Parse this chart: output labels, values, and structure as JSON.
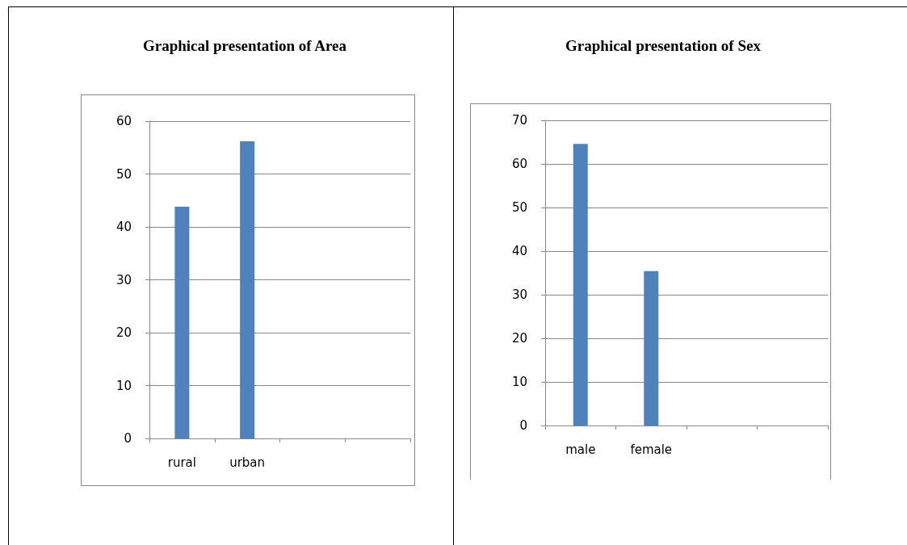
{
  "chart_data": [
    {
      "type": "bar",
      "title": "Graphical presentation of Area",
      "categories": [
        "rural",
        "urban",
        null,
        null
      ],
      "values": [
        43.8,
        56.2,
        null,
        null
      ],
      "color": "#4f81bd",
      "ylim": [
        0,
        60
      ],
      "yticks": [
        0,
        10,
        20,
        30,
        40,
        50,
        60
      ],
      "grid": "y"
    },
    {
      "type": "bar",
      "title": "Graphical presentation of Sex",
      "categories": [
        "male",
        "female",
        null,
        null
      ],
      "values": [
        64.6,
        35.4,
        null,
        null
      ],
      "color": "#4f81bd",
      "ylim": [
        0,
        70
      ],
      "yticks": [
        0,
        10,
        20,
        30,
        40,
        50,
        60,
        70
      ],
      "grid": "y"
    }
  ]
}
